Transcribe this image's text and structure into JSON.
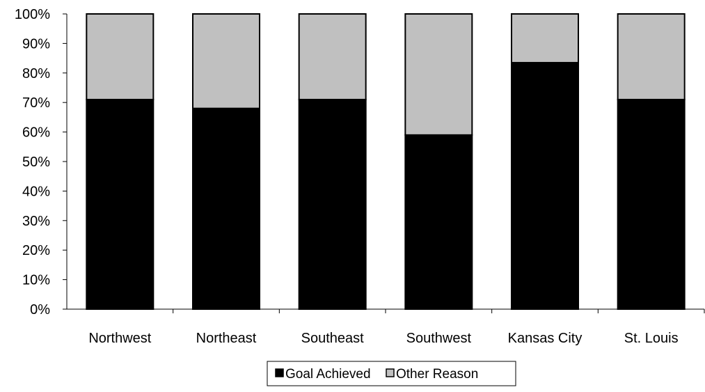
{
  "chart_data": {
    "type": "bar",
    "stacked": true,
    "percent_stacked": true,
    "categories": [
      "Northwest",
      "Northeast",
      "Southeast",
      "Southwest",
      "Kansas City",
      "St. Louis"
    ],
    "series": [
      {
        "name": "Goal Achieved",
        "color": "#000000",
        "values": [
          71,
          68,
          71,
          59,
          83.5,
          71
        ]
      },
      {
        "name": "Other Reason",
        "color": "#c0c0c0",
        "values": [
          29,
          32,
          29,
          41,
          16.5,
          29
        ]
      }
    ],
    "y_ticks": [
      "0%",
      "10%",
      "20%",
      "30%",
      "40%",
      "50%",
      "60%",
      "70%",
      "80%",
      "90%",
      "100%"
    ],
    "ylim": [
      0,
      100
    ],
    "grid": false,
    "legend_position": "bottom-center"
  }
}
